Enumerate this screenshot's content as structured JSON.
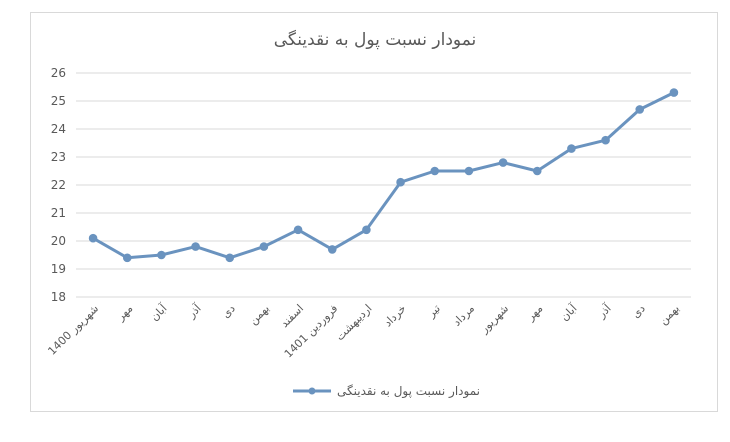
{
  "chart_data": {
    "type": "line",
    "title": "نمودار نسبت پول به نقدینگی",
    "xlabel": "",
    "ylabel": "",
    "categories": [
      "شهریور 1400",
      "مهر",
      "آبان",
      "آذر",
      "دی",
      "بهمن",
      "اسفند",
      "فروردین 1401",
      "اردیبهشت",
      "خرداد",
      "تیر",
      "مرداد",
      "شهریور",
      "مهر",
      "آبان",
      "آذر",
      "دی",
      "بهمن"
    ],
    "series": [
      {
        "name": "نمودار نسبت پول به نقدینگی",
        "values": [
          20.1,
          19.4,
          19.5,
          19.8,
          19.4,
          19.8,
          20.4,
          19.7,
          20.4,
          22.1,
          22.5,
          22.5,
          22.8,
          22.5,
          23.3,
          23.6,
          24.7,
          25.3
        ],
        "color": "#6a93bf"
      }
    ],
    "ylim": [
      18,
      26
    ],
    "yticks": [
      18,
      19,
      20,
      21,
      22,
      23,
      24,
      25,
      26
    ],
    "grid": true,
    "legend_position": "bottom"
  }
}
